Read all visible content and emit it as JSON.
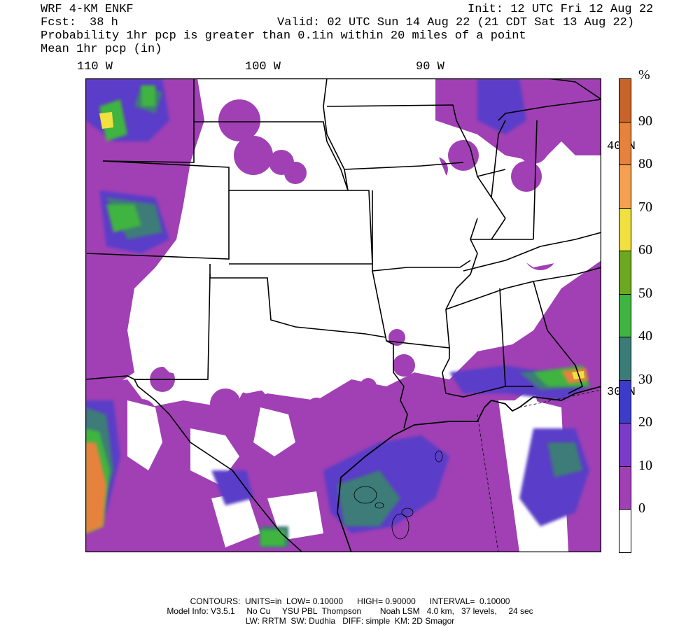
{
  "header": {
    "model": "WRF 4-KM ENKF",
    "init": "Init: 12 UTC Fri 12 Aug 22",
    "fcst_label": "Fcst:",
    "fcst_value": "38 h",
    "valid": "Valid: 02 UTC Sun 14 Aug 22 (21 CDT Sat 13 Aug 22)",
    "field_1": "Probability 1hr pcp is greater than 0.1in within 20 miles of a point",
    "field_2": "Mean 1hr pcp (in)"
  },
  "longitude_labels": [
    "110 W",
    "100 W",
    "90 W"
  ],
  "latitude_labels": [
    "40 N",
    "30 N"
  ],
  "colorbar": {
    "unit": "%",
    "ticks": [
      "90",
      "80",
      "70",
      "60",
      "50",
      "40",
      "30",
      "20",
      "10",
      "0"
    ],
    "colors": [
      "#c8642a",
      "#e6823c",
      "#f5a050",
      "#f0e040",
      "#6ca820",
      "#40b440",
      "#3c7c78",
      "#3c3cc8",
      "#7a3cc8",
      "#a040b4",
      "#ffffff"
    ]
  },
  "footer": {
    "line1": "CONTOURS:  UNITS=in  LOW= 0.10000      HIGH= 0.90000      INTERVAL=  0.10000",
    "line2": "Model Info: V3.5.1     No Cu     YSU PBL  Thompson        Noah LSM   4.0 km,   37 levels,     24 sec",
    "line3": "LW: RRTM  SW: Dudhia   DIFF: simple  KM: 2D Smagor"
  }
}
